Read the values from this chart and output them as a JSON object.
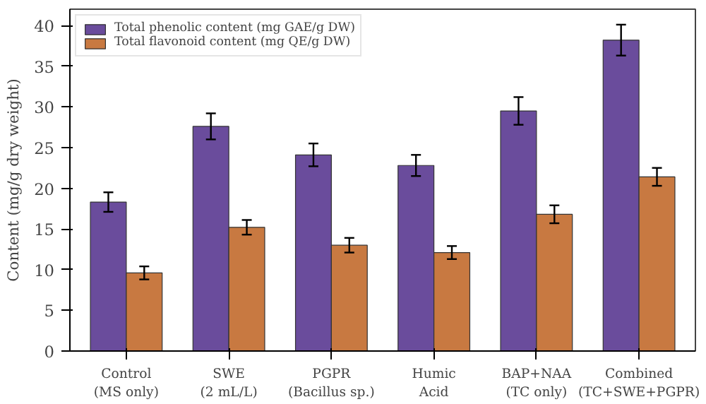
{
  "chart_data": {
    "type": "bar",
    "ylabel": "Content (mg/g dry weight)",
    "categories": [
      "Control\n(MS only)",
      "SWE\n(2 mL/L)",
      "PGPR\n(Bacillus sp.)",
      "Humic\nAcid",
      "BAP+NAA\n(TC only)",
      "Combined\n(TC+SWE+PGPR)"
    ],
    "series": [
      {
        "name": "Total phenolic content (mg GAE/g DW)",
        "color": "#6a4c9c",
        "values": [
          18.3,
          27.6,
          24.1,
          22.8,
          29.5,
          38.2
        ],
        "errors": [
          1.2,
          1.6,
          1.4,
          1.3,
          1.7,
          1.9
        ]
      },
      {
        "name": "Total flavonoid content (mg QE/g DW)",
        "color": "#c87941",
        "values": [
          9.6,
          15.2,
          13.0,
          12.1,
          16.8,
          21.4
        ],
        "errors": [
          0.8,
          0.9,
          0.9,
          0.8,
          1.1,
          1.1
        ]
      }
    ],
    "ylim": [
      0,
      42
    ],
    "yticks": [
      0,
      5,
      10,
      15,
      20,
      25,
      30,
      35,
      40
    ],
    "grid": false,
    "legend": "top left"
  }
}
